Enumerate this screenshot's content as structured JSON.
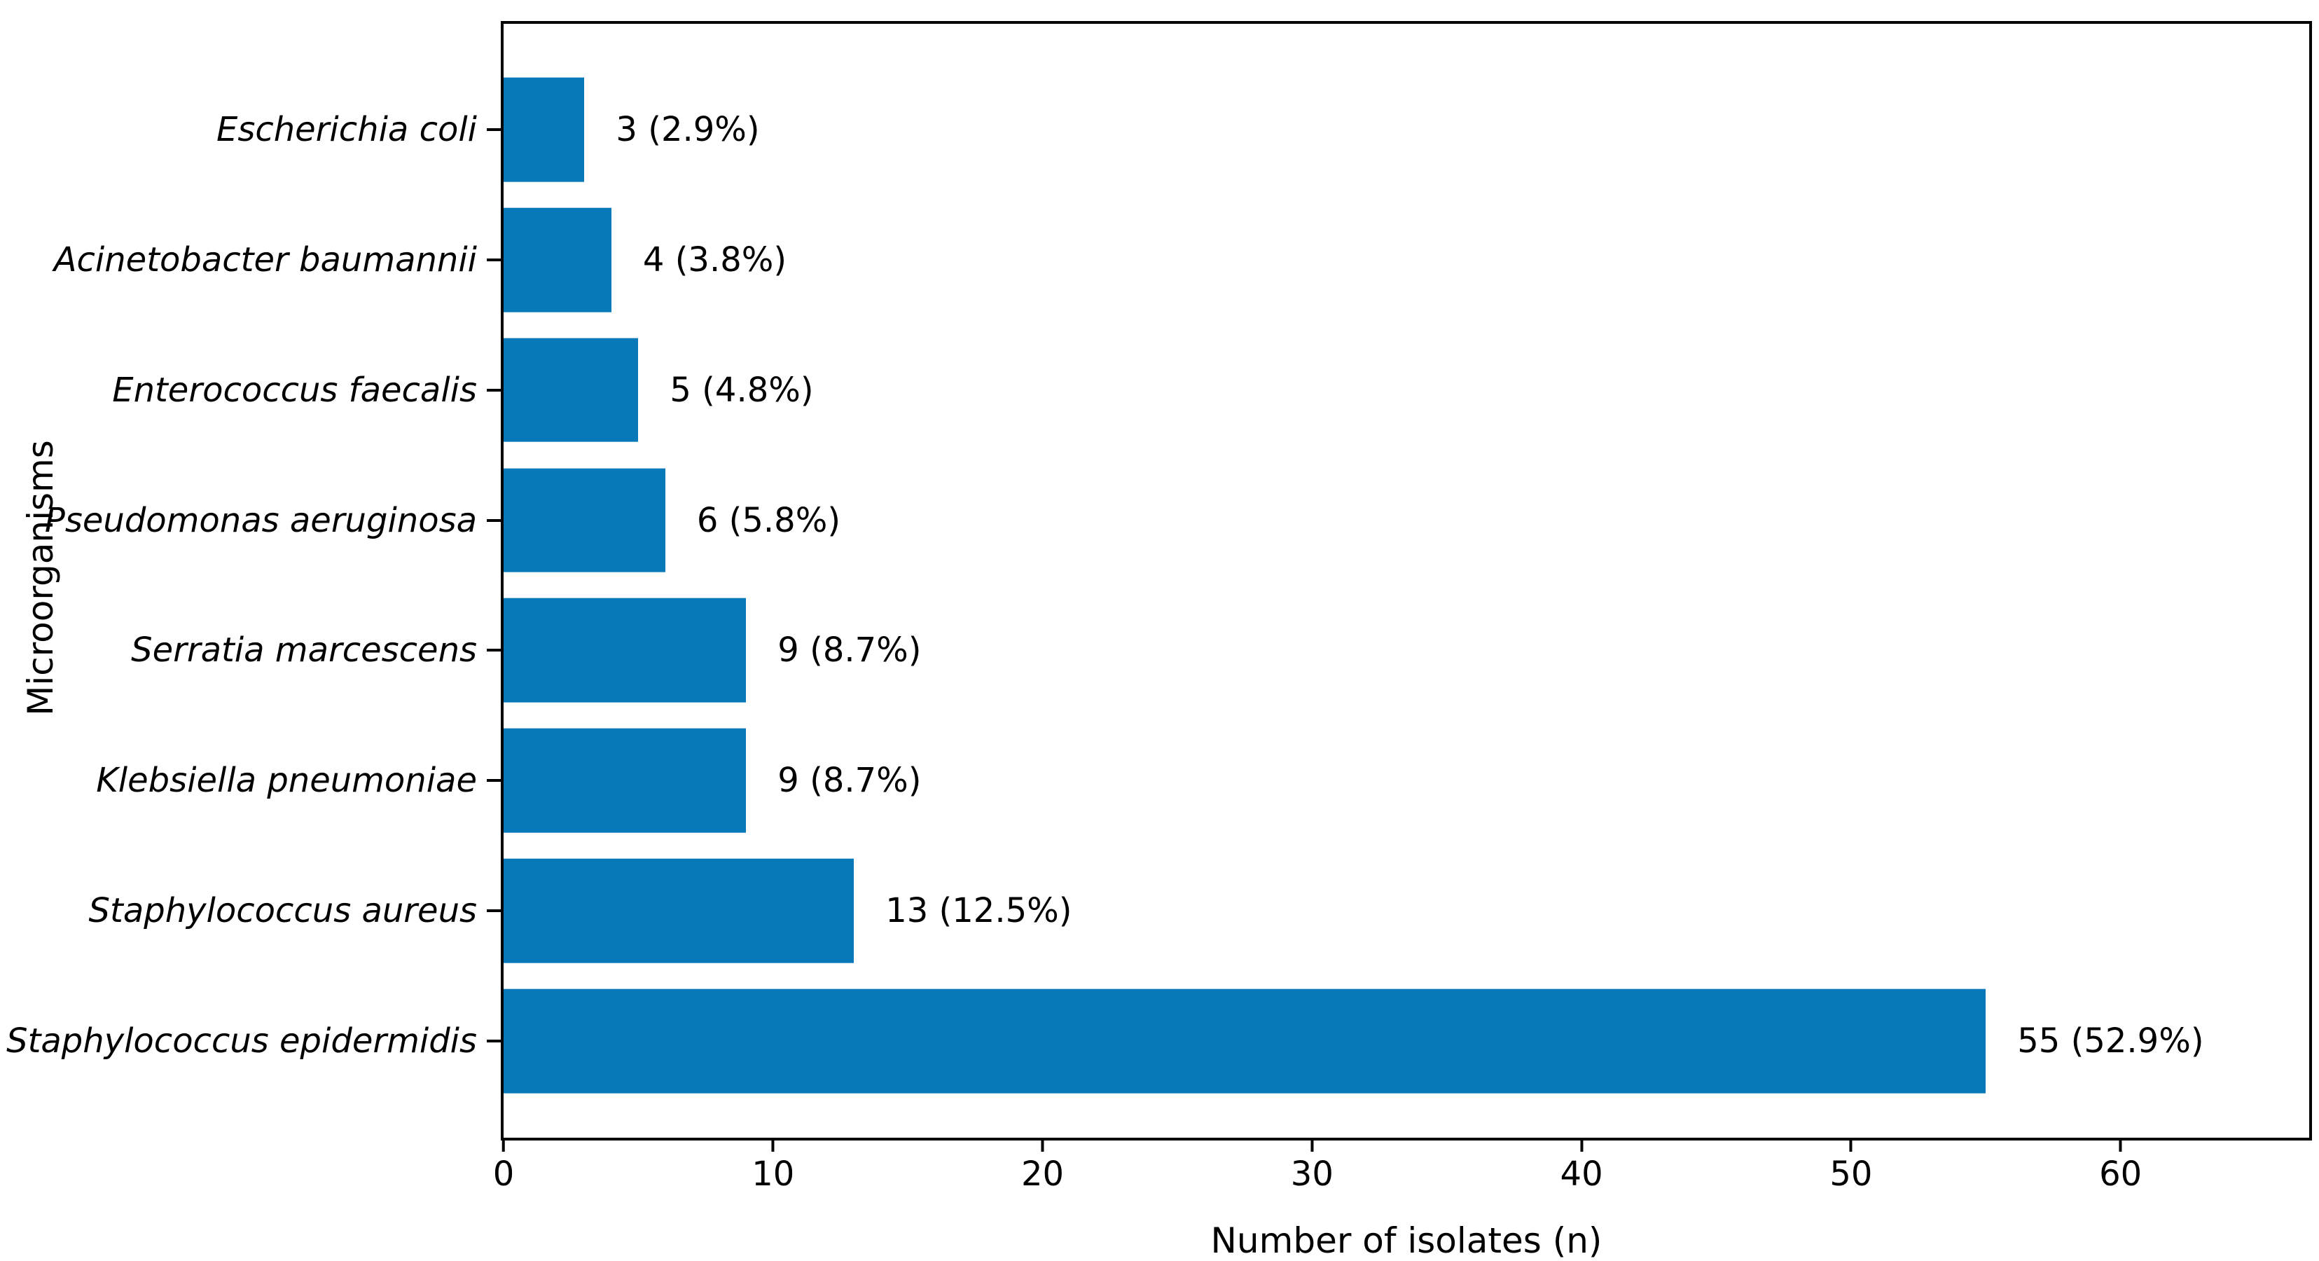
{
  "chart_data": {
    "type": "bar",
    "orientation": "horizontal",
    "title": "",
    "xlabel": "Number of isolates (n)",
    "ylabel": "Microorganisms",
    "categories": [
      "Escherichia coli",
      "Acinetobacter baumannii",
      "Enterococcus faecalis",
      "Pseudomonas aeruginosa",
      "Serratia marcescens",
      "Klebsiella pneumoniae",
      "Staphylococcus aureus",
      "Staphylococcus epidermidis"
    ],
    "values": [
      3,
      4,
      5,
      6,
      9,
      9,
      13,
      55
    ],
    "percentages": [
      2.9,
      3.8,
      4.8,
      5.8,
      8.7,
      8.7,
      12.5,
      52.9
    ],
    "bar_labels": [
      "3 (2.9%)",
      "4 (3.8%)",
      "5 (4.8%)",
      "6 (5.8%)",
      "9 (8.7%)",
      "9 (8.7%)",
      "13 (12.5%)",
      "55 (52.9%)"
    ],
    "xlim": [
      0,
      67
    ],
    "x_ticks": [
      0,
      10,
      20,
      30,
      40,
      50,
      60
    ],
    "x_tick_labels": [
      "0",
      "10",
      "20",
      "30",
      "40",
      "50",
      "60"
    ],
    "grid": false,
    "legend": null,
    "bar_color": "#0778b8",
    "axis_color": "#000000",
    "background_color": "#ffffff",
    "category_label_style": "italic"
  }
}
